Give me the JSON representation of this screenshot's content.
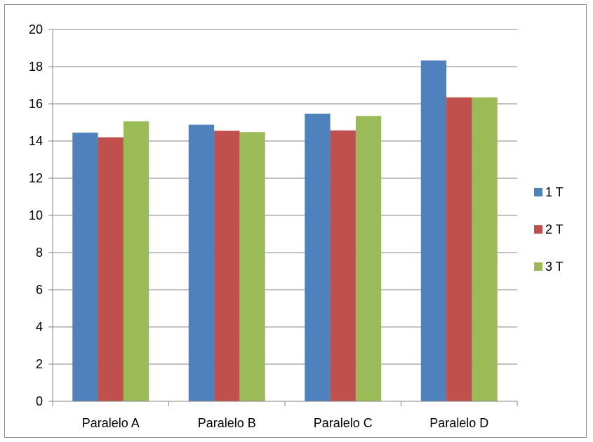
{
  "chart_data": {
    "type": "bar",
    "title": "",
    "xlabel": "",
    "ylabel": "",
    "categories": [
      "Paralelo A",
      "Paralelo B",
      "Paralelo C",
      "Paralelo D"
    ],
    "series": [
      {
        "name": "1 T",
        "color": "#4F81BD",
        "values": [
          14.45,
          14.88,
          15.47,
          18.33
        ]
      },
      {
        "name": "2 T",
        "color": "#C0504D",
        "values": [
          14.2,
          14.55,
          14.57,
          16.35
        ]
      },
      {
        "name": "3 T",
        "color": "#9BBB59",
        "values": [
          15.06,
          14.48,
          15.35,
          16.35
        ]
      }
    ],
    "ylim": [
      0,
      20
    ],
    "yticks": [
      0,
      2,
      4,
      6,
      8,
      10,
      12,
      14,
      16,
      18,
      20
    ],
    "grid": true,
    "legend_position": "right"
  }
}
